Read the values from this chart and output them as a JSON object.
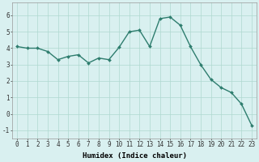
{
  "x": [
    0,
    1,
    2,
    3,
    4,
    5,
    6,
    7,
    8,
    9,
    10,
    11,
    12,
    13,
    14,
    15,
    16,
    17,
    18,
    19,
    20,
    21,
    22,
    23
  ],
  "y": [
    4.1,
    4.0,
    4.0,
    3.8,
    3.3,
    3.5,
    3.6,
    3.1,
    3.4,
    3.3,
    4.05,
    5.0,
    5.1,
    4.1,
    5.8,
    5.9,
    5.4,
    4.1,
    3.0,
    2.1,
    1.6,
    1.3,
    0.6,
    -0.7
  ],
  "line_color": "#2e7d6e",
  "marker": "D",
  "marker_size": 2.0,
  "bg_color": "#d9f0f0",
  "grid_color": "#afd8d0",
  "xlabel": "Humidex (Indice chaleur)",
  "ylim": [
    -1.5,
    6.8
  ],
  "xlim": [
    -0.5,
    23.5
  ],
  "yticks": [
    -1,
    0,
    1,
    2,
    3,
    4,
    5,
    6
  ],
  "xticks": [
    0,
    1,
    2,
    3,
    4,
    5,
    6,
    7,
    8,
    9,
    10,
    11,
    12,
    13,
    14,
    15,
    16,
    17,
    18,
    19,
    20,
    21,
    22,
    23
  ],
  "xlabel_fontsize": 6.5,
  "tick_fontsize": 5.5,
  "line_width": 1.0
}
